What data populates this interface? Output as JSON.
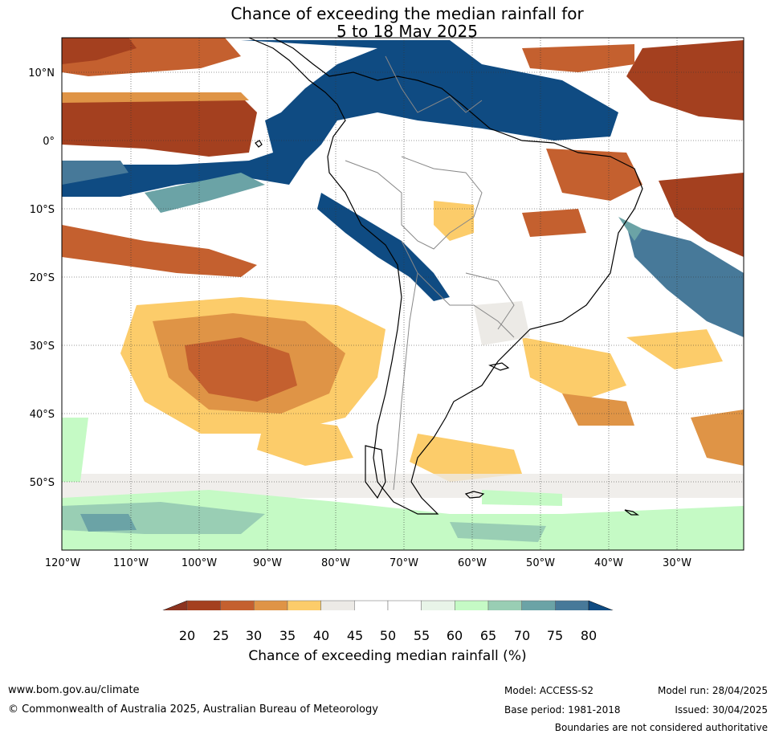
{
  "title": {
    "line1": "Chance of exceeding the median rainfall for",
    "line2": "5 to 18 May 2025"
  },
  "map": {
    "lat_labels": [
      "10°N",
      "0°",
      "10°S",
      "20°S",
      "30°S",
      "40°S",
      "50°S"
    ],
    "lon_labels": [
      "120°W",
      "110°W",
      "100°W",
      "90°W",
      "80°W",
      "70°W",
      "60°W",
      "50°W",
      "40°W",
      "30°W"
    ],
    "lon_range": [
      -120,
      -20
    ],
    "lat_range": [
      -60,
      15
    ]
  },
  "colorbar": {
    "ticks": [
      "20",
      "25",
      "30",
      "35",
      "40",
      "45",
      "50",
      "55",
      "60",
      "65",
      "70",
      "75",
      "80"
    ],
    "colors": [
      "#a4401f",
      "#c4602f",
      "#df9446",
      "#fccc6a",
      "#eceae6",
      "#ffffff",
      "#ffffff",
      "#e8f4e8",
      "#c5fac5",
      "#99ceb4",
      "#6ba3a6",
      "#477999"
    ],
    "low_color": "#8c3420",
    "high_color": "#0f4b82",
    "label": "Chance of exceeding median rainfall (%)"
  },
  "footer": {
    "website": "www.bom.gov.au/climate",
    "copyright": "© Commonwealth of Australia 2025, Australian Bureau of Meteorology",
    "model": "Model: ACCESS-S2",
    "base_period": "Base period: 1981-2018",
    "model_run": "Model run: 28/04/2025",
    "issued": "Issued: 30/04/2025",
    "boundaries_note": "Boundaries are not considered authoritative"
  }
}
